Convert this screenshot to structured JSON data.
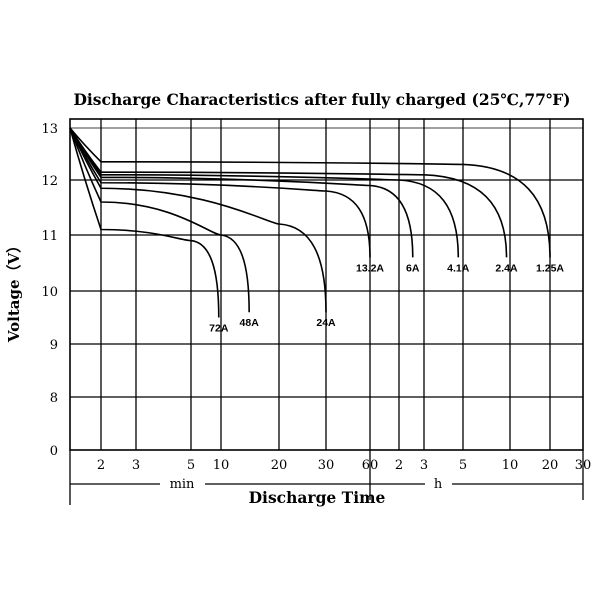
{
  "chart_data": {
    "type": "line",
    "title": "Discharge Characteristics after fully charged (25℃,77℉)",
    "ylabel": "Voltage（V）",
    "xlabel": "Discharge Time",
    "ylim": [
      0,
      13
    ],
    "grid": true,
    "y_ticks": [
      "0",
      "8",
      "9",
      "10",
      "11",
      "12",
      "13"
    ],
    "x_ticks": [
      "2",
      "3",
      "5",
      "10",
      "20",
      "30",
      "60",
      "2",
      "3",
      "5",
      "10",
      "20",
      "30"
    ],
    "x_unit_min": "min",
    "x_unit_h": "h",
    "series": [
      {
        "name": "72A",
        "x": [
          "0 min",
          "2 min",
          "5 min",
          "9.5 min"
        ],
        "y": [
          13.0,
          11.1,
          10.9,
          9.5
        ]
      },
      {
        "name": "48A",
        "x": [
          "0 min",
          "2 min",
          "10 min",
          "14 min"
        ],
        "y": [
          13.0,
          11.6,
          11.0,
          9.6
        ]
      },
      {
        "name": "24A",
        "x": [
          "0 min",
          "2 min",
          "20 min",
          "30 min"
        ],
        "y": [
          13.0,
          11.85,
          11.2,
          9.6
        ]
      },
      {
        "name": "13.2A",
        "x": [
          "0 min",
          "2 min",
          "30 min",
          "60 min"
        ],
        "y": [
          13.0,
          11.95,
          11.8,
          10.6
        ]
      },
      {
        "name": "6A",
        "x": [
          "0 min",
          "2 min",
          "60 min",
          "2.5 h"
        ],
        "y": [
          13.0,
          12.05,
          11.9,
          10.6
        ]
      },
      {
        "name": "4.1A",
        "x": [
          "0 min",
          "2 min",
          "2 h",
          "4.7 h"
        ],
        "y": [
          13.0,
          12.1,
          12.0,
          10.6
        ]
      },
      {
        "name": "2.4A",
        "x": [
          "0 min",
          "2 min",
          "3 h",
          "9.5 h"
        ],
        "y": [
          13.0,
          12.15,
          12.1,
          10.6
        ]
      },
      {
        "name": "1.25A",
        "x": [
          "0 min",
          "2 min",
          "5 h",
          "20 h"
        ],
        "y": [
          13.0,
          12.35,
          12.3,
          10.6
        ]
      }
    ]
  },
  "colors": {
    "background": "#ffffff",
    "line": "#000000"
  }
}
